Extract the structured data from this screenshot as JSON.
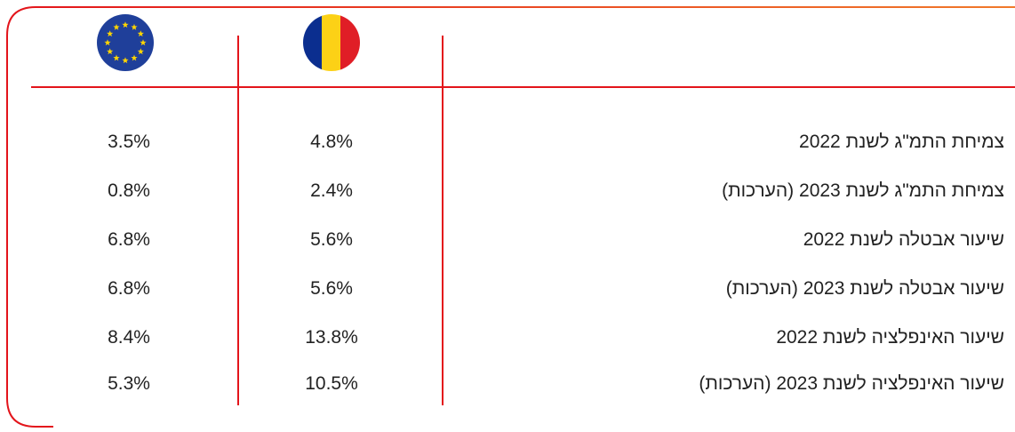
{
  "table": {
    "rows": [
      [
        "צמיחת התמ\"ג לשנת 2022",
        "4.8%",
        "3.5%"
      ],
      [
        "צמיחת התמ\"ג לשנת 2023 (הערכות)",
        "2.4%",
        "0.8%"
      ],
      [
        "שיעור אבטלה לשנת 2022",
        "5.6%",
        "6.8%"
      ],
      [
        "שיעור אבטלה לשנת 2023 (הערכות)",
        "5.6%",
        "6.8%"
      ],
      [
        "שיעור האינפלציה לשנת 2022",
        "13.8%",
        "8.4%"
      ],
      [
        "שיעור האינפלציה לשנת 2023 (הערכות)",
        "10.5%",
        "5.3%"
      ]
    ]
  }
}
